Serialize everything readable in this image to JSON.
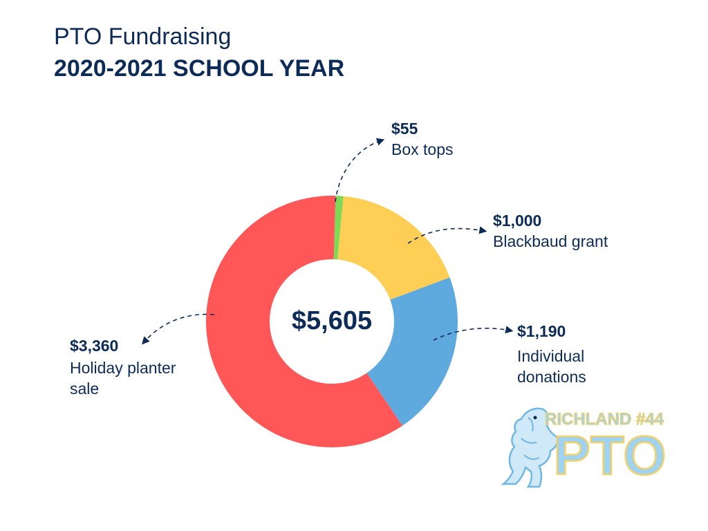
{
  "title": {
    "line1": "PTO Fundraising",
    "line2": "2020-2021 SCHOOL YEAR"
  },
  "chart_data": {
    "type": "pie",
    "total_label": "$5,605",
    "series": [
      {
        "name": "Box tops",
        "value": 55,
        "value_label": "$55",
        "color": "#7ed957"
      },
      {
        "name": "Blackbaud grant",
        "value": 1000,
        "value_label": "$1,000",
        "color": "#ffcf55"
      },
      {
        "name": "Individual donations",
        "value": 1190,
        "value_label": "$1,190",
        "color": "#5ea9dd"
      },
      {
        "name": "Holiday planter sale",
        "value": 3360,
        "value_label": "$3,360",
        "color": "#ff5757"
      }
    ]
  },
  "labels": {
    "box_tops": {
      "amount": "$55",
      "name": "Box tops"
    },
    "blackbaud": {
      "amount": "$1,000",
      "name": "Blackbaud grant"
    },
    "individual": {
      "amount": "$1,190",
      "name_line1": "Individual",
      "name_line2": "donations"
    },
    "holiday": {
      "amount": "$3,360",
      "name_line1": "Holiday planter",
      "name_line2": "sale"
    }
  },
  "logo": {
    "line1": "RICHLAND #44",
    "line2": "PTO"
  },
  "colors": {
    "text": "#0d2b57",
    "logo_fill": "#9fd3f0",
    "logo_outline": "#f2d16b"
  }
}
